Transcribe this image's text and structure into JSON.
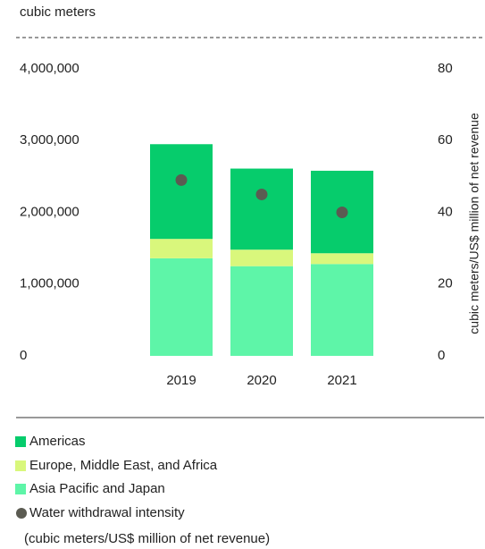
{
  "chart_data": {
    "type": "bar",
    "stacked": true,
    "ylabel": "cubic meters",
    "y2label": "cubic meters/US$ million of net revenue",
    "categories": [
      "2019",
      "2020",
      "2021"
    ],
    "series": [
      {
        "name": "Asia Pacific and Japan",
        "color": "#5ef5a8",
        "values": [
          1360000,
          1250000,
          1280000
        ]
      },
      {
        "name": "Europe, Middle East, and Africa",
        "color": "#d9f77c",
        "values": [
          270000,
          230000,
          150000
        ]
      },
      {
        "name": "Americas",
        "color": "#06cc6c",
        "values": [
          1320000,
          1130000,
          1150000
        ]
      },
      {
        "name": "Water withdrawal intensity",
        "color": "#5b5b52",
        "axis": "y2",
        "values": [
          49,
          45,
          40
        ]
      }
    ],
    "legend_order": [
      2,
      1,
      0,
      3
    ],
    "intensity_note": "(cubic meters/US$ million of net revenue)",
    "ylim": [
      0,
      4000000
    ],
    "yticks": [
      {
        "value": 0,
        "label": "0"
      },
      {
        "value": 1000000,
        "label": "1,000,000"
      },
      {
        "value": 2000000,
        "label": "2,000,000"
      },
      {
        "value": 3000000,
        "label": "3,000,000"
      },
      {
        "value": 4000000,
        "label": "4,000,000"
      }
    ],
    "y2lim": [
      0,
      80
    ],
    "y2ticks": [
      0,
      20,
      40,
      60,
      80
    ],
    "grid": false
  }
}
